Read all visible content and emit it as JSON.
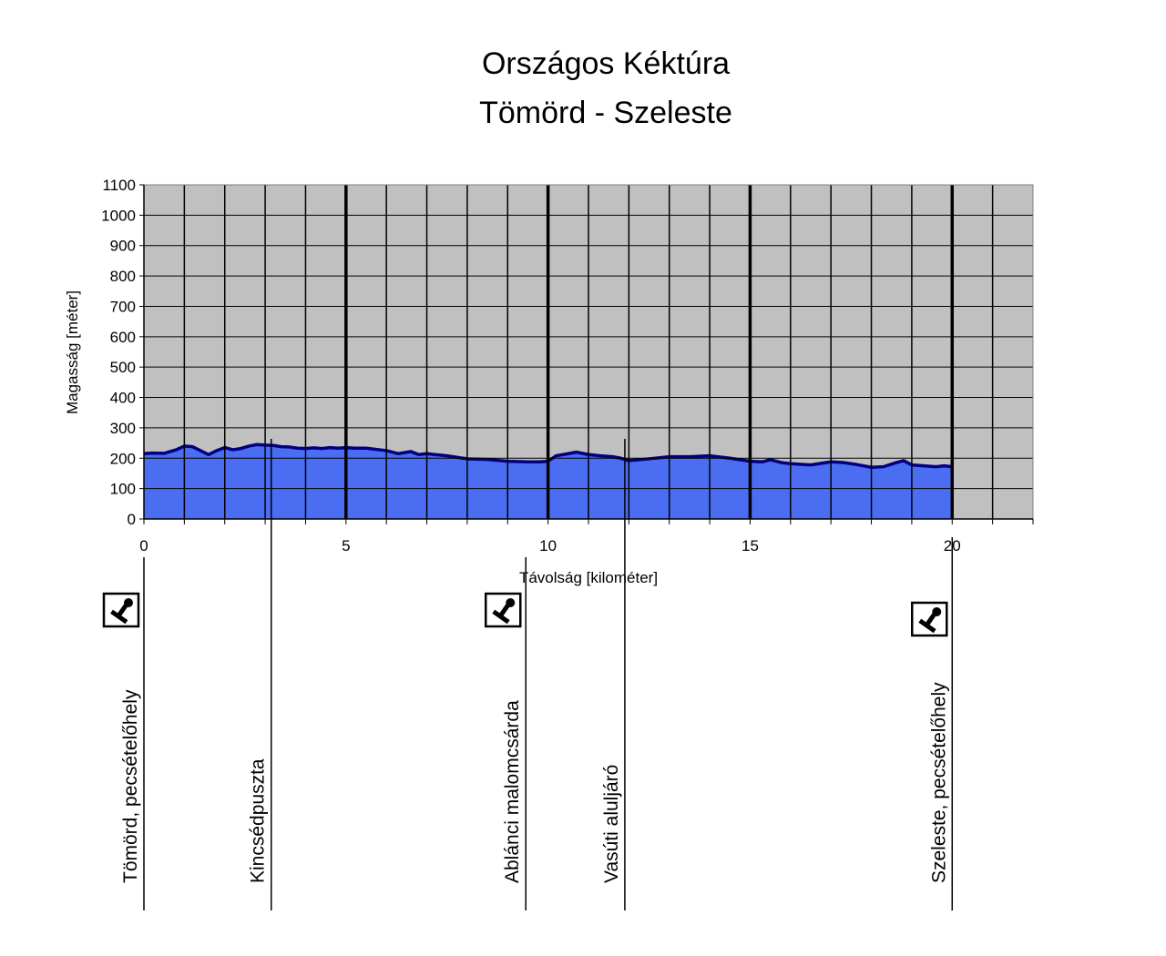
{
  "chart_data": {
    "type": "area",
    "title": "Országos Kéktúra",
    "subtitle": "Tömörd - Szeleste",
    "xlabel": "Távolság [kilométer]",
    "ylabel": "Magasság [méter]",
    "xlim": [
      0,
      22
    ],
    "ylim": [
      0,
      1100
    ],
    "x_ticks": [
      0,
      5,
      10,
      15,
      20
    ],
    "y_ticks": [
      0,
      100,
      200,
      300,
      400,
      500,
      600,
      700,
      800,
      900,
      1000,
      1100
    ],
    "grid": true,
    "legend": "none",
    "colors": {
      "plot_background": "#c0c0c0",
      "area_fill": "#4b6df2",
      "line": "#000080",
      "grid": "#000000"
    },
    "series": [
      {
        "x": [
          0,
          0.2,
          0.5,
          0.8,
          1.0,
          1.2,
          1.4,
          1.6,
          1.8,
          2.0,
          2.2,
          2.4,
          2.6,
          2.8,
          3.0,
          3.2,
          3.4,
          3.6,
          3.8,
          4.0,
          4.2,
          4.4,
          4.6,
          4.8,
          5.0,
          5.2,
          5.5,
          6.0,
          6.3,
          6.6,
          6.8,
          7.0,
          7.2,
          7.5,
          8.0,
          8.5,
          9.0,
          9.5,
          9.8,
          10.0,
          10.2,
          10.5,
          10.7,
          11.0,
          11.3,
          11.6,
          11.8,
          12.0,
          12.5,
          13.0,
          13.5,
          14.0,
          14.5,
          15.0,
          15.3,
          15.5,
          15.8,
          16.0,
          16.5,
          17.0,
          17.3,
          17.6,
          18.0,
          18.3,
          18.6,
          18.8,
          19.0,
          19.3,
          19.6,
          19.8,
          20.0
        ],
        "y": [
          215,
          217,
          216,
          228,
          240,
          238,
          225,
          212,
          225,
          235,
          228,
          232,
          240,
          245,
          243,
          242,
          238,
          237,
          233,
          232,
          234,
          232,
          235,
          233,
          235,
          233,
          233,
          225,
          215,
          222,
          212,
          215,
          212,
          208,
          198,
          196,
          190,
          188,
          188,
          190,
          208,
          215,
          220,
          212,
          208,
          205,
          200,
          192,
          198,
          205,
          205,
          208,
          200,
          190,
          188,
          195,
          185,
          182,
          178,
          188,
          186,
          180,
          170,
          172,
          185,
          192,
          178,
          175,
          172,
          175,
          172
        ]
      }
    ],
    "waypoints": [
      {
        "km": 0,
        "name": "Tömörd, pecsételőhely",
        "stamp": true,
        "icon": "stamp-icon"
      },
      {
        "km": 3.15,
        "name": "Kincsédpuszta",
        "stamp": false
      },
      {
        "km": 9.45,
        "name": "Ablánci malomcsárda",
        "stamp": true,
        "icon": "stamp-icon"
      },
      {
        "km": 11.9,
        "name": "Vasúti aluljáró",
        "stamp": false
      },
      {
        "km": 20,
        "name": "Szeleste, pecsételőhely",
        "stamp": true,
        "icon": "stamp-icon"
      }
    ]
  }
}
